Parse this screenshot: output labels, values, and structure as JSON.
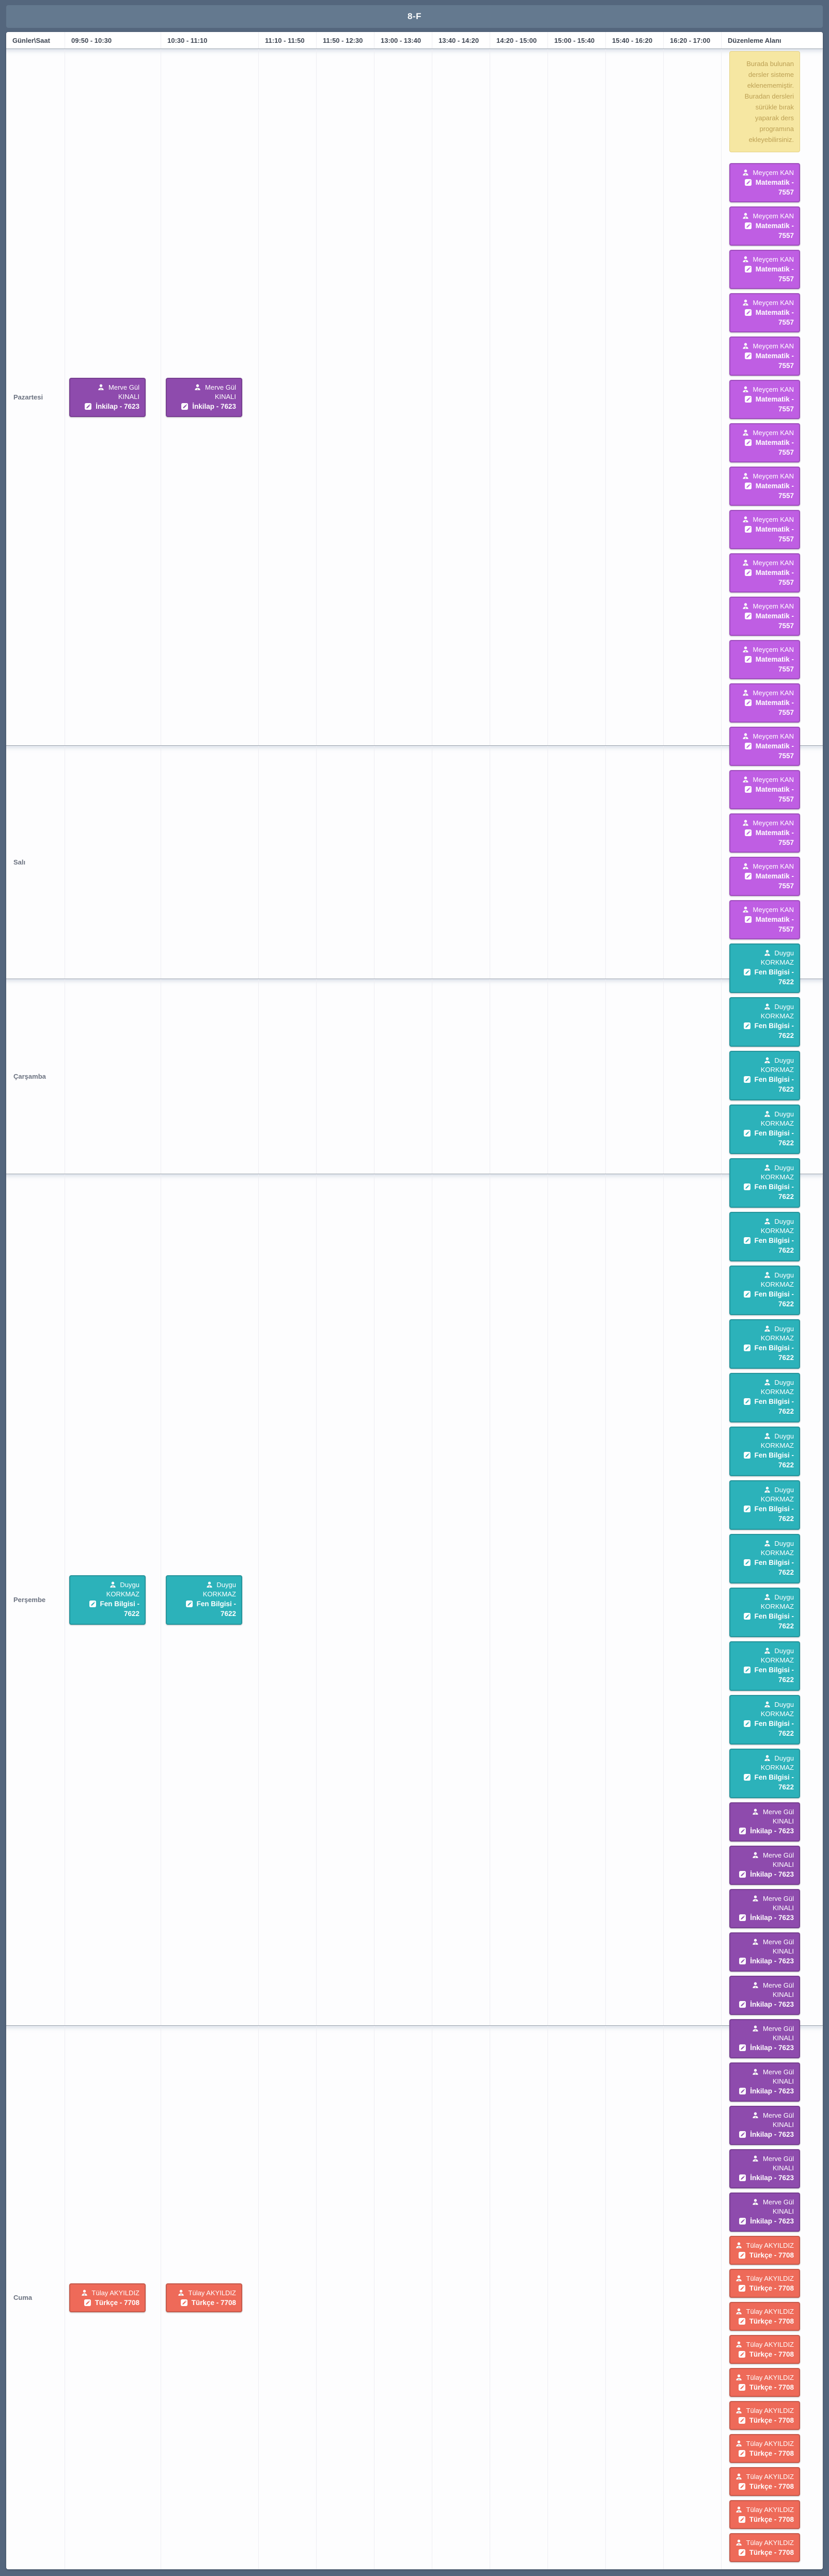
{
  "header": {
    "title": "8-F"
  },
  "columns": [
    "Günler\\Saat",
    "09:50 - 10:30",
    "10:30 - 11:10",
    "11:10 - 11:50",
    "11:50 - 12:30",
    "13:00 - 13:40",
    "13:40 - 14:20",
    "14:20 - 15:00",
    "15:00 - 15:40",
    "15:40 - 16:20",
    "16:20 - 17:00",
    "Düzenleme Alanı"
  ],
  "note": {
    "text": "Burada bulunan dersler sisteme eklenememiştir. Buradan dersleri sürükle bırak yaparak ders programına ekleyebilirsiniz."
  },
  "lessons": {
    "matematik": {
      "teacher": "Meyçem KAN",
      "label": "Matematik - 7557",
      "color": "#bf5ee3"
    },
    "fen": {
      "teacher": "Duygu KORKMAZ",
      "label": "Fen Bilgisi - 7622",
      "color": "#2cb2ba"
    },
    "inkilap": {
      "teacher": "Merve Gül KINALI",
      "label": "İnkilap - 7623",
      "color": "#8e4bad"
    },
    "turkce": {
      "teacher": "Tülay AKYILDIZ",
      "label": "Türkçe - 7708",
      "color": "#ee6a59"
    }
  },
  "schedule": [
    {
      "day": "Pazartesi",
      "entries": [
        {
          "slot": 0,
          "lesson": "inkilap"
        },
        {
          "slot": 1,
          "lesson": "inkilap"
        }
      ]
    },
    {
      "day": "Salı",
      "entries": []
    },
    {
      "day": "Çarşamba",
      "entries": []
    },
    {
      "day": "Perşembe",
      "entries": [
        {
          "slot": 0,
          "lesson": "fen"
        },
        {
          "slot": 1,
          "lesson": "fen"
        }
      ]
    },
    {
      "day": "Cuma",
      "entries": [
        {
          "slot": 0,
          "lesson": "turkce"
        },
        {
          "slot": 1,
          "lesson": "turkce"
        }
      ]
    }
  ],
  "stack": [
    {
      "lesson": "matematik",
      "count": 18
    },
    {
      "lesson": "fen",
      "count": 16
    },
    {
      "lesson": "inkilap",
      "count": 10
    },
    {
      "lesson": "turkce",
      "count": 10
    }
  ]
}
